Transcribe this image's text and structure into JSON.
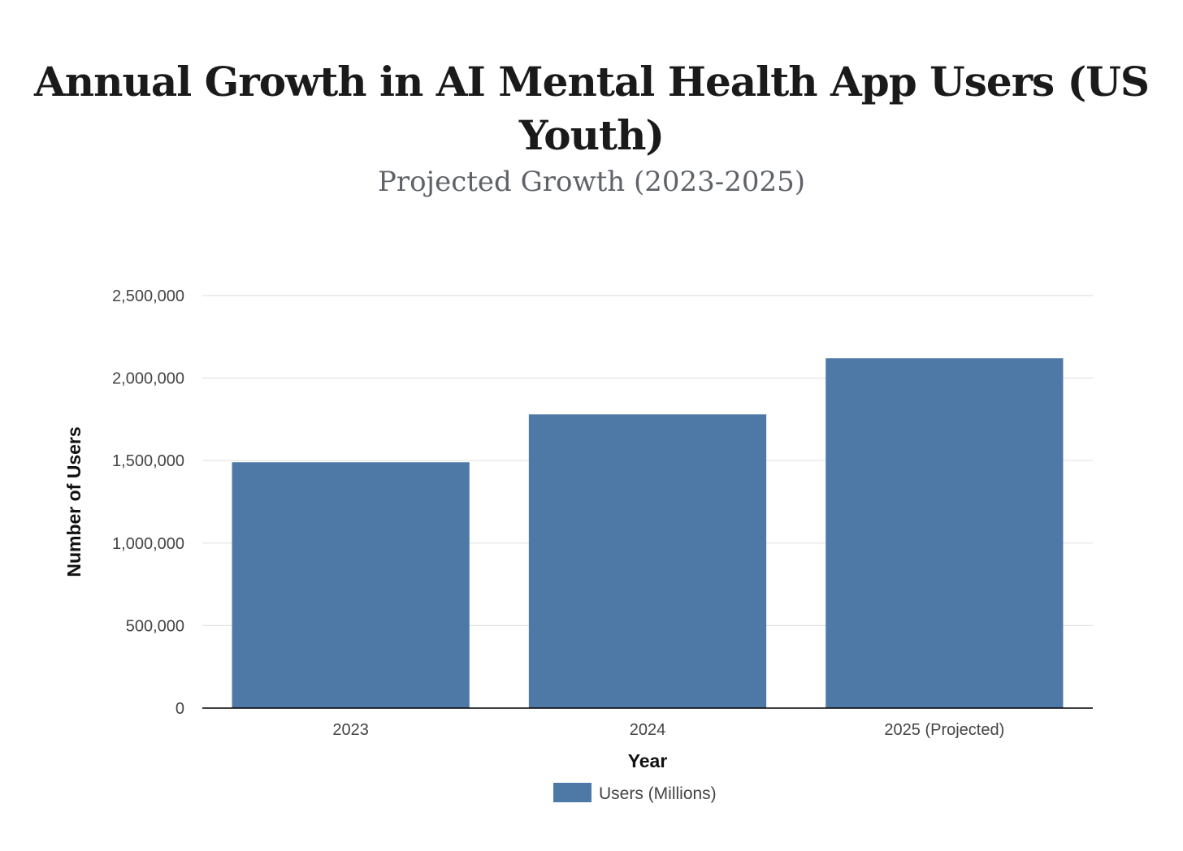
{
  "chart_data": {
    "type": "bar",
    "title_lines": [
      "Annual Growth in AI Mental Health App Users (US",
      "Youth)"
    ],
    "subtitle": "Projected Growth (2023-2025)",
    "categories": [
      "2023",
      "2024",
      "2025 (Projected)"
    ],
    "series": [
      {
        "name": "Users (Millions)",
        "color": "#4e79a7",
        "values": [
          1490000,
          1780000,
          2120000
        ]
      }
    ],
    "xlabel": "Year",
    "ylabel": "Number of Users",
    "ylim": [
      0,
      2500000
    ],
    "yticks": [
      0,
      500000,
      1000000,
      1500000,
      2000000,
      2500000
    ],
    "ytick_labels": [
      "0",
      "500,000",
      "1,000,000",
      "1,500,000",
      "2,000,000",
      "2,500,000"
    ],
    "grid": true,
    "legend_position": "bottom-center"
  }
}
